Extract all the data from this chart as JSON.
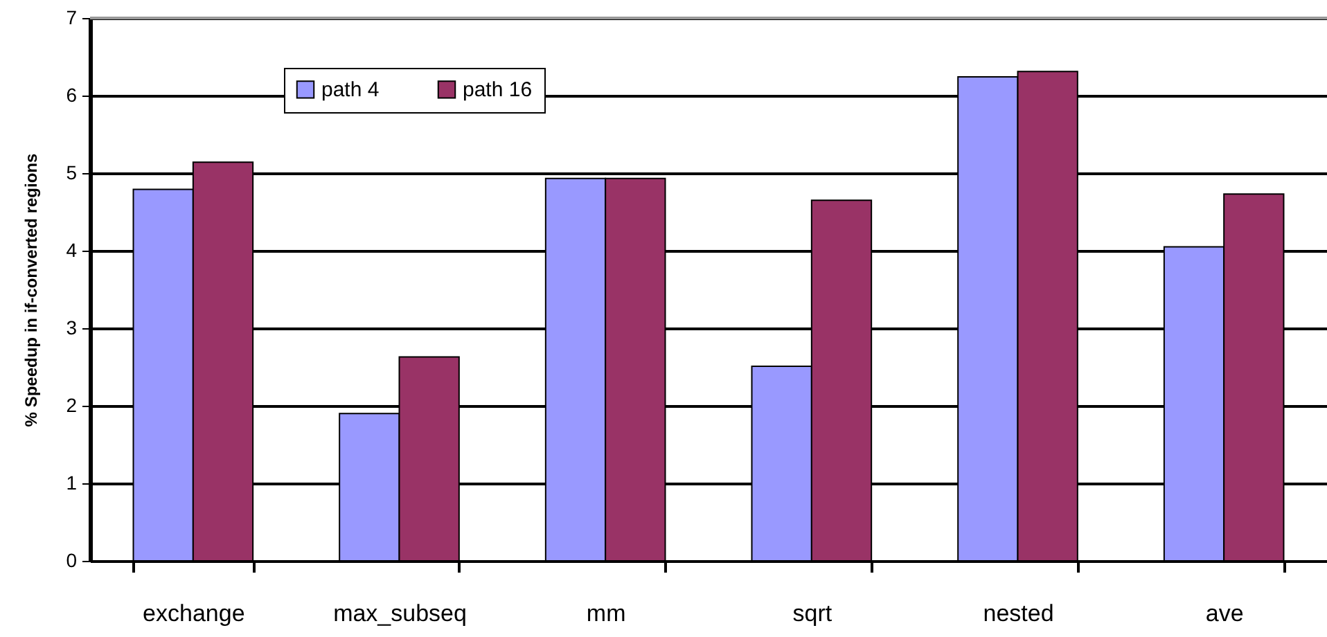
{
  "chart_data": {
    "type": "bar",
    "ylabel": "% Speedup in if-converted regions",
    "categories": [
      "exchange",
      "max_subseq",
      "mm",
      "sqrt",
      "nested",
      "ave"
    ],
    "series": [
      {
        "name": "path 4",
        "color": "#9999ff",
        "values": [
          4.79,
          1.9,
          4.93,
          2.51,
          6.24,
          4.05
        ]
      },
      {
        "name": "path 16",
        "color": "#993366",
        "values": [
          5.14,
          2.63,
          4.93,
          4.65,
          6.31,
          4.73
        ]
      }
    ],
    "ylim": [
      0,
      7
    ],
    "yticks": [
      0,
      1,
      2,
      3,
      4,
      5,
      6,
      7
    ],
    "grid": "y",
    "legend": "top"
  }
}
